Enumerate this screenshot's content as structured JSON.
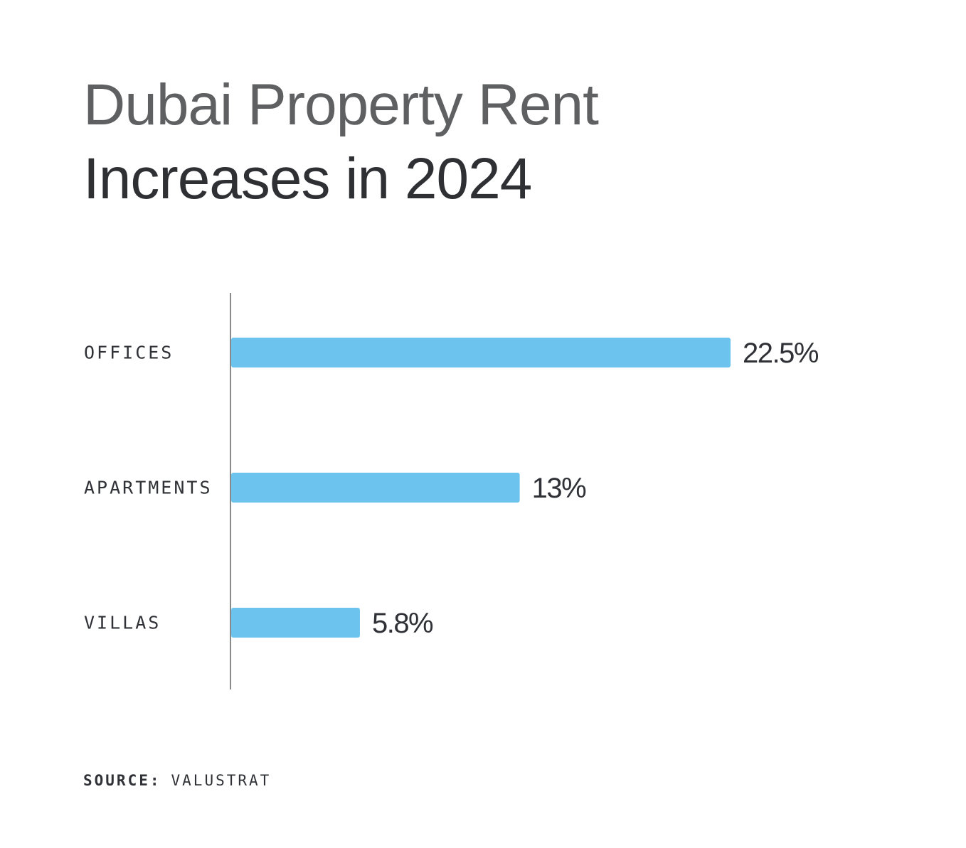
{
  "chart_data": {
    "type": "bar",
    "orientation": "horizontal",
    "title": "Dubai Property Rent Increases in 2024",
    "title_lines": [
      "Dubai Property Rent",
      "Increases in 2024"
    ],
    "categories": [
      "OFFICES",
      "APARTMENTS",
      "VILLAS"
    ],
    "values": [
      22.5,
      13,
      5.8
    ],
    "value_labels": [
      "22.5%",
      "13%",
      "5.8%"
    ],
    "xlim": [
      0,
      22.5
    ],
    "grid": false,
    "bar_color": "#6cc3ee",
    "axis_color": "#8a8a8a"
  },
  "footer": {
    "source_label": "SOURCE:",
    "source_value": "VALUSTRAT"
  }
}
